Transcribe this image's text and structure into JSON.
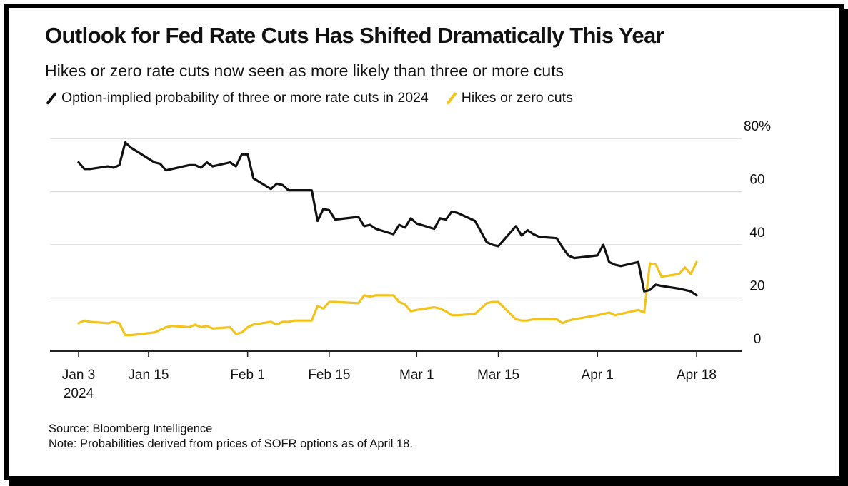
{
  "title": "Outlook for Fed Rate Cuts Has Shifted Dramatically This Year",
  "subtitle": "Hikes or zero rate cuts now seen as more likely than three or more cuts",
  "source": "Source: Bloomberg Intelligence",
  "note": "Note: Probabilities derived from prices of SOFR options as of April 18.",
  "colors": {
    "series_black": "#111111",
    "series_yellow": "#f2c31b",
    "grid": "#d9d9d9",
    "axis": "#222222"
  },
  "chart_data": {
    "type": "line",
    "title": "Outlook for Fed Rate Cuts Has Shifted Dramatically This Year",
    "subtitle": "Hikes or zero rate cuts now seen as more likely than three or more cuts",
    "xlabel": "",
    "ylabel": "",
    "x_range": [
      "2024-01-03",
      "2024-04-18"
    ],
    "ylim": [
      0,
      80
    ],
    "y_ticks": [
      0,
      20,
      40,
      60,
      80
    ],
    "y_tick_labels": [
      "0",
      "20",
      "40",
      "60",
      "80%"
    ],
    "y_axis_side": "right",
    "x_ticks": [
      "2024-01-03",
      "2024-01-15",
      "2024-02-01",
      "2024-02-15",
      "2024-03-01",
      "2024-03-15",
      "2024-04-01",
      "2024-04-18"
    ],
    "x_tick_labels": [
      "Jan 3\n2024",
      "Jan 15",
      "Feb 1",
      "Feb 15",
      "Mar 1",
      "Mar 15",
      "Apr 1",
      "Apr 18"
    ],
    "grid": true,
    "legend_position": "top-left",
    "series": [
      {
        "name": "Option-implied probability of three or more rate cuts in 2024",
        "color": "#111111",
        "x": [
          "2024-01-03",
          "2024-01-04",
          "2024-01-05",
          "2024-01-08",
          "2024-01-09",
          "2024-01-10",
          "2024-01-11",
          "2024-01-12",
          "2024-01-16",
          "2024-01-17",
          "2024-01-18",
          "2024-01-19",
          "2024-01-22",
          "2024-01-23",
          "2024-01-24",
          "2024-01-25",
          "2024-01-26",
          "2024-01-29",
          "2024-01-30",
          "2024-01-31",
          "2024-02-01",
          "2024-02-02",
          "2024-02-05",
          "2024-02-06",
          "2024-02-07",
          "2024-02-08",
          "2024-02-09",
          "2024-02-12",
          "2024-02-13",
          "2024-02-14",
          "2024-02-15",
          "2024-02-16",
          "2024-02-20",
          "2024-02-21",
          "2024-02-22",
          "2024-02-23",
          "2024-02-26",
          "2024-02-27",
          "2024-02-28",
          "2024-02-29",
          "2024-03-01",
          "2024-03-04",
          "2024-03-05",
          "2024-03-06",
          "2024-03-07",
          "2024-03-08",
          "2024-03-11",
          "2024-03-12",
          "2024-03-13",
          "2024-03-14",
          "2024-03-15",
          "2024-03-18",
          "2024-03-19",
          "2024-03-20",
          "2024-03-21",
          "2024-03-22",
          "2024-03-25",
          "2024-03-26",
          "2024-03-27",
          "2024-03-28",
          "2024-04-01",
          "2024-04-02",
          "2024-04-03",
          "2024-04-04",
          "2024-04-05",
          "2024-04-08",
          "2024-04-09",
          "2024-04-10",
          "2024-04-11",
          "2024-04-12",
          "2024-04-15",
          "2024-04-16",
          "2024-04-17",
          "2024-04-18"
        ],
        "y": [
          71,
          68.5,
          68.5,
          69.5,
          69,
          70,
          78.5,
          76.5,
          71,
          70.5,
          68,
          68.5,
          70,
          70,
          69,
          71,
          69.5,
          71,
          69.5,
          74,
          74,
          65,
          61,
          63,
          62.5,
          60.5,
          60.5,
          60.5,
          49,
          53.5,
          53,
          49.5,
          50.5,
          47,
          47.5,
          46,
          44,
          47.5,
          46.5,
          50,
          48,
          46,
          50,
          49.5,
          52.5,
          52,
          49,
          45,
          41,
          40,
          39.5,
          47,
          43.5,
          45.5,
          44,
          43,
          42.5,
          39,
          36,
          35,
          36,
          40,
          33.5,
          32.5,
          32,
          33.5,
          22.5,
          23,
          25,
          24.5,
          23.5,
          23,
          22.5,
          21
        ]
      },
      {
        "name": "Hikes or zero cuts",
        "color": "#f2c31b",
        "x": [
          "2024-01-03",
          "2024-01-04",
          "2024-01-05",
          "2024-01-08",
          "2024-01-09",
          "2024-01-10",
          "2024-01-11",
          "2024-01-12",
          "2024-01-16",
          "2024-01-17",
          "2024-01-18",
          "2024-01-19",
          "2024-01-22",
          "2024-01-23",
          "2024-01-24",
          "2024-01-25",
          "2024-01-26",
          "2024-01-29",
          "2024-01-30",
          "2024-01-31",
          "2024-02-01",
          "2024-02-02",
          "2024-02-05",
          "2024-02-06",
          "2024-02-07",
          "2024-02-08",
          "2024-02-09",
          "2024-02-12",
          "2024-02-13",
          "2024-02-14",
          "2024-02-15",
          "2024-02-16",
          "2024-02-20",
          "2024-02-21",
          "2024-02-22",
          "2024-02-23",
          "2024-02-26",
          "2024-02-27",
          "2024-02-28",
          "2024-02-29",
          "2024-03-01",
          "2024-03-04",
          "2024-03-05",
          "2024-03-06",
          "2024-03-07",
          "2024-03-08",
          "2024-03-11",
          "2024-03-12",
          "2024-03-13",
          "2024-03-14",
          "2024-03-15",
          "2024-03-18",
          "2024-03-19",
          "2024-03-20",
          "2024-03-21",
          "2024-03-22",
          "2024-03-25",
          "2024-03-26",
          "2024-03-27",
          "2024-03-28",
          "2024-04-01",
          "2024-04-02",
          "2024-04-03",
          "2024-04-04",
          "2024-04-05",
          "2024-04-08",
          "2024-04-09",
          "2024-04-10",
          "2024-04-11",
          "2024-04-12",
          "2024-04-15",
          "2024-04-16",
          "2024-04-17",
          "2024-04-18"
        ],
        "y": [
          10.5,
          11.5,
          11,
          10.5,
          11,
          10.5,
          6,
          6,
          7,
          8,
          9,
          9.5,
          9,
          10,
          9,
          9.5,
          8.5,
          9,
          6.5,
          7,
          9,
          10,
          11,
          10,
          11,
          11,
          11.5,
          11.5,
          17,
          16,
          18.5,
          18.5,
          18,
          21,
          20.5,
          21,
          21,
          18.5,
          17.5,
          15,
          15.5,
          16.5,
          16,
          15,
          13.5,
          13.5,
          14,
          16,
          18,
          18.5,
          18.5,
          12,
          11.5,
          11.5,
          12,
          12,
          12,
          10.5,
          11.5,
          12,
          13.5,
          14,
          14.5,
          13.5,
          14,
          15.5,
          14.5,
          33,
          32.5,
          28,
          29,
          31.5,
          29,
          33.5
        ]
      }
    ]
  }
}
